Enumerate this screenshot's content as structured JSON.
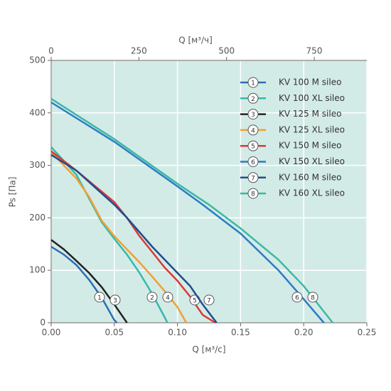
{
  "chart_data": {
    "type": "line",
    "xlabel": "Q [м³/с]",
    "ylabel": "Ps [Па]",
    "x2label": "Q [м³/ч]",
    "xlim": [
      0,
      0.25
    ],
    "xticks": [
      {
        "value": 0,
        "label": "0.00"
      },
      {
        "value": 0.05,
        "label": "0.05"
      },
      {
        "value": 0.1,
        "label": "0.10"
      },
      {
        "value": 0.15,
        "label": "0.15"
      },
      {
        "value": 0.2,
        "label": "0.20"
      },
      {
        "value": 0.25,
        "label": "0.25"
      }
    ],
    "x2lim": [
      0,
      900
    ],
    "x2ticks": [
      0,
      250,
      500,
      750
    ],
    "ylim": [
      0,
      500
    ],
    "yticks": [
      0,
      100,
      200,
      300,
      400,
      500
    ],
    "grid": true,
    "legend": "upper right",
    "series": [
      {
        "name": "KV 100 M sileo",
        "number": "1",
        "color": "#2b6db5",
        "x": [
          0,
          0.01,
          0.02,
          0.03,
          0.04,
          0.05,
          0.052
        ],
        "values": [
          145,
          130,
          110,
          82,
          48,
          5,
          0
        ]
      },
      {
        "name": "KV 100 XL sileo",
        "number": "2",
        "color": "#35b9aa",
        "x": [
          0,
          0.02,
          0.03,
          0.04,
          0.05,
          0.06,
          0.07,
          0.08,
          0.09,
          0.092
        ],
        "values": [
          335,
          282,
          237,
          192,
          160,
          130,
          95,
          55,
          10,
          0
        ]
      },
      {
        "name": "KV 125 M sileo",
        "number": "3",
        "color": "#222222",
        "x": [
          0,
          0.01,
          0.02,
          0.03,
          0.04,
          0.05,
          0.06
        ],
        "values": [
          158,
          140,
          118,
          95,
          68,
          35,
          0
        ]
      },
      {
        "name": "KV 125 XL sileo",
        "number": "4",
        "color": "#f0a035",
        "x": [
          0,
          0.02,
          0.03,
          0.04,
          0.05,
          0.06,
          0.07,
          0.08,
          0.09,
          0.1,
          0.107
        ],
        "values": [
          325,
          275,
          240,
          195,
          165,
          140,
          115,
          88,
          60,
          30,
          0
        ]
      },
      {
        "name": "KV 150 M sileo",
        "number": "5",
        "color": "#d83a3a",
        "x": [
          0,
          0.02,
          0.04,
          0.05,
          0.06,
          0.07,
          0.08,
          0.09,
          0.1,
          0.11,
          0.12,
          0.13
        ],
        "values": [
          327,
          290,
          250,
          230,
          200,
          165,
          135,
          105,
          80,
          50,
          15,
          0
        ]
      },
      {
        "name": "KV 150 XL sileo",
        "number": "6",
        "color": "#2d7cc4",
        "x": [
          0,
          0.05,
          0.1,
          0.12,
          0.15,
          0.18,
          0.2,
          0.216
        ],
        "values": [
          420,
          345,
          260,
          225,
          170,
          100,
          45,
          0
        ]
      },
      {
        "name": "KV 160 M sileo",
        "number": "7",
        "color": "#1f4e8c",
        "x": [
          0,
          0.02,
          0.05,
          0.06,
          0.08,
          0.1,
          0.11,
          0.12,
          0.131
        ],
        "values": [
          320,
          290,
          225,
          200,
          145,
          95,
          70,
          35,
          0
        ]
      },
      {
        "name": "KV 160 XL sileo",
        "number": "8",
        "color": "#3bb8a6",
        "x": [
          0,
          0.05,
          0.1,
          0.125,
          0.15,
          0.18,
          0.2,
          0.223
        ],
        "values": [
          427,
          350,
          265,
          225,
          180,
          120,
          70,
          0
        ]
      }
    ]
  }
}
